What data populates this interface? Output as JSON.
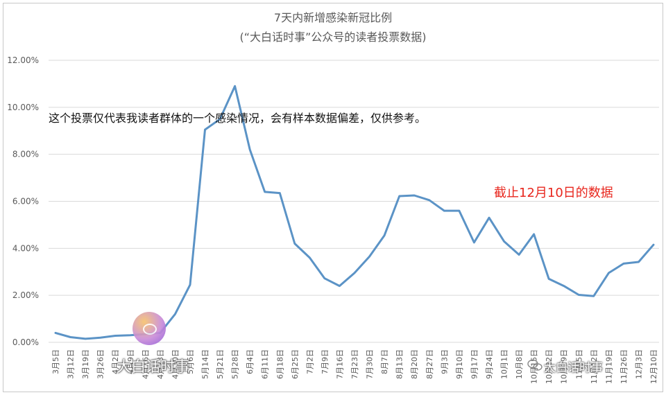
{
  "chart_data": {
    "type": "line",
    "title": "7天内新增感染新冠比例",
    "subtitle": "(“大白话时事”公众号的读者投票数据)",
    "xlabel": "",
    "ylabel": "",
    "ylim": [
      0,
      12
    ],
    "yticks": [
      "0.00%",
      "2.00%",
      "4.00%",
      "6.00%",
      "8.00%",
      "10.00%",
      "12.00%"
    ],
    "grid": true,
    "legend": "none",
    "categories": [
      "3月5日",
      "3月12日",
      "3月19日",
      "3月26日",
      "4月2日",
      "4月9日",
      "4月16日",
      "4月23日",
      "4月30日",
      "5月6日",
      "5月14日",
      "5月21日",
      "5月28日",
      "6月4日",
      "6月11日",
      "6月18日",
      "6月25日",
      "7月2日",
      "7月9日",
      "7月16日",
      "7月23日",
      "7月30日",
      "8月7日",
      "8月13日",
      "8月20日",
      "8月27日",
      "9月3日",
      "9月10日",
      "9月17日",
      "9月24日",
      "10月1日",
      "10月8日",
      "10月15日",
      "10月22日",
      "10月29日",
      "11月5日",
      "11月12日",
      "11月19日",
      "11月26日",
      "12月3日",
      "12月10日"
    ],
    "series": [
      {
        "name": "",
        "color": "#5b93c6",
        "values": [
          0.4,
          0.22,
          0.15,
          0.2,
          0.28,
          0.3,
          0.35,
          0.4,
          1.2,
          2.45,
          9.05,
          9.5,
          10.9,
          8.2,
          6.4,
          6.35,
          4.2,
          3.6,
          2.72,
          2.4,
          2.95,
          3.65,
          4.55,
          6.22,
          6.25,
          6.05,
          5.6,
          5.6,
          4.25,
          5.3,
          4.3,
          3.73,
          4.6,
          2.7,
          2.4,
          2.02,
          1.97,
          2.95,
          3.35,
          3.42,
          4.15
        ]
      }
    ],
    "annotations": {
      "note": "这个投票仅代表我读者群体的一个感染情况，会有样本数据偏差，仅供参考。",
      "cutoff": "截止12月10日的数据"
    },
    "watermarks": {
      "left": "大白话时事",
      "right": "大白话时事"
    }
  }
}
